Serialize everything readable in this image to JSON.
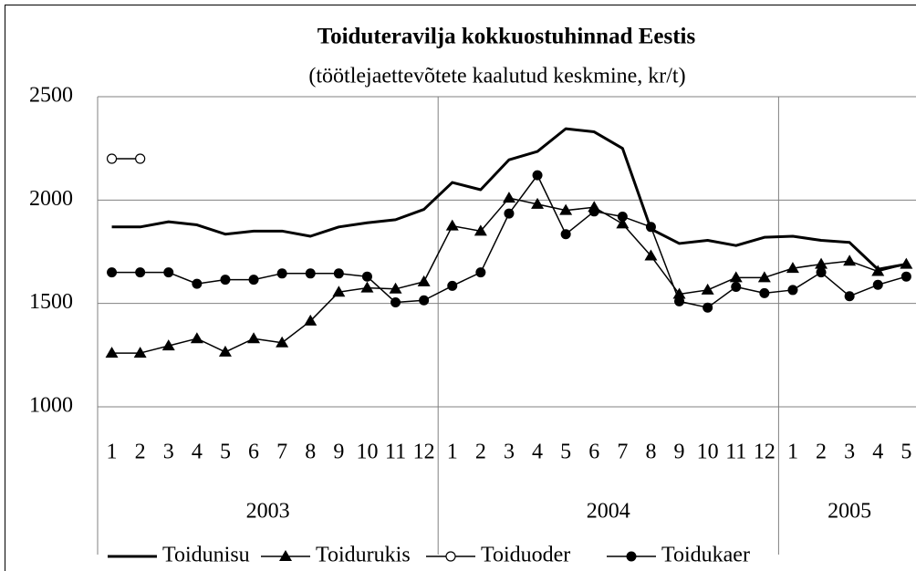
{
  "chart_data": {
    "type": "line",
    "title": "Toiduteravilja kokkuostuhinnad Eestis",
    "subtitle": "(töötlejaettevõtete kaalutud keskmine, kr/t)",
    "categories": [
      "1",
      "2",
      "3",
      "4",
      "5",
      "6",
      "7",
      "8",
      "9",
      "10",
      "11",
      "12",
      "1",
      "2",
      "3",
      "4",
      "5",
      "6",
      "7",
      "8",
      "9",
      "10",
      "11",
      "12",
      "1",
      "2",
      "3",
      "4",
      "5"
    ],
    "groups": [
      {
        "label": "2003",
        "span": 12
      },
      {
        "label": "2004",
        "span": 12
      },
      {
        "label": "2005",
        "span": 5
      }
    ],
    "ylim": [
      1000,
      2500
    ],
    "yticks": [
      1000,
      1500,
      2000,
      2500
    ],
    "grid": true,
    "legend": "bottom",
    "series": [
      {
        "name": "Toidunisu",
        "color": "#000000",
        "marker": "none",
        "width": 3,
        "values": [
          1870,
          1870,
          1895,
          1880,
          1835,
          1850,
          1850,
          1825,
          1870,
          1890,
          1905,
          1955,
          2085,
          2050,
          2195,
          2235,
          2345,
          2330,
          2250,
          1860,
          1790,
          1805,
          1780,
          1820,
          1825,
          1805,
          1795,
          1665,
          1690
        ]
      },
      {
        "name": "Toidurukis",
        "color": "#000000",
        "marker": "triangle",
        "width": 1.5,
        "values": [
          1260,
          1260,
          1295,
          1330,
          1265,
          1330,
          1310,
          1415,
          1555,
          1575,
          1570,
          1605,
          1875,
          1850,
          2010,
          1980,
          1950,
          1965,
          1885,
          1730,
          1545,
          1565,
          1625,
          1625,
          1670,
          1690,
          1705,
          1655,
          1690
        ]
      },
      {
        "name": "Toiduoder",
        "color": "#000000",
        "marker": "open-circle",
        "width": 1.5,
        "values": [
          2200,
          2200,
          null,
          null,
          null,
          null,
          null,
          null,
          null,
          null,
          null,
          null,
          null,
          null,
          null,
          null,
          null,
          null,
          null,
          null,
          null,
          null,
          null,
          null,
          null,
          null,
          null,
          null,
          null
        ]
      },
      {
        "name": "Toidukaer",
        "color": "#000000",
        "marker": "circle",
        "width": 1.5,
        "values": [
          1650,
          1650,
          1650,
          1595,
          1615,
          1615,
          1645,
          1645,
          1645,
          1630,
          1505,
          1515,
          1585,
          1650,
          1935,
          2120,
          1835,
          1945,
          1920,
          1870,
          1510,
          1480,
          1580,
          1550,
          1565,
          1650,
          1535,
          1590,
          1630
        ]
      }
    ]
  }
}
